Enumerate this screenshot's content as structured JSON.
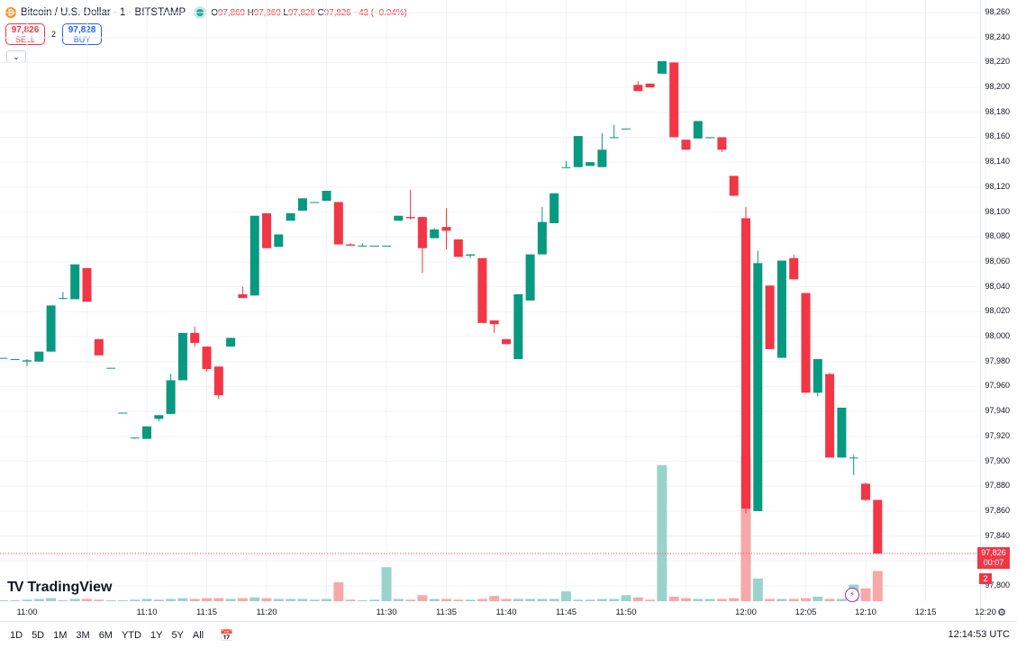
{
  "header": {
    "symbol": "Bitcoin / U.S. Dollar · 1 · BITSTAMP",
    "btc_icon": "₿",
    "open_key": "O",
    "open": "97,869",
    "high_key": "H",
    "high": "97,869",
    "low_key": "L",
    "low": "97,826",
    "close_key": "C",
    "close": "97,826",
    "change": "−43 (−0.04%)"
  },
  "trade": {
    "sell_price": "97,826",
    "sell_label": "SELL",
    "spread": "2",
    "buy_price": "97,828",
    "buy_label": "BUY",
    "collapse_icon": "⌄"
  },
  "branding": {
    "logo_mark": "TV",
    "logo_text": "TradingView"
  },
  "price_axis": {
    "current_price": "97,826",
    "countdown": "00:07",
    "volume_badge": "2"
  },
  "bottom_bar": {
    "ranges": [
      "1D",
      "5D",
      "1M",
      "3M",
      "6M",
      "YTD",
      "1Y",
      "5Y",
      "All"
    ],
    "calendar_icon": "📅",
    "time": "12:14:53 UTC",
    "settings_icon": "⚙"
  },
  "colors": {
    "up": "#089981",
    "down": "#f23645",
    "vol_up": "#9ad3cb",
    "vol_down": "#f7a9a8"
  },
  "chart_data": {
    "type": "candlestick",
    "title": "Bitcoin / U.S. Dollar · 1 · BITSTAMP",
    "interval": "1 minute",
    "y_ticks": [
      97800,
      97820,
      97840,
      97860,
      97880,
      97900,
      97920,
      97940,
      97960,
      97980,
      98000,
      98020,
      98040,
      98060,
      98080,
      98100,
      98120,
      98140,
      98160,
      98180,
      98200,
      98220,
      98240,
      98260
    ],
    "y_tick_labels": [
      "97,800",
      "97,820",
      "97,840",
      "97,860",
      "97,880",
      "97,900",
      "97,920",
      "97,940",
      "97,960",
      "97,980",
      "98,000",
      "98,020",
      "98,040",
      "98,060",
      "98,080",
      "98,100",
      "98,120",
      "98,140",
      "98,160",
      "98,180",
      "98,200",
      "98,220",
      "98,240",
      "98,260"
    ],
    "ylim": [
      97791,
      98262
    ],
    "x_ticks": [
      "11:00",
      "11:05",
      "11:10",
      "11:15",
      "11:20",
      "11:25",
      "11:30",
      "11:35",
      "11:40",
      "11:45",
      "11:50",
      "11:55",
      "12:00",
      "12:05",
      "12:10",
      "12:15",
      "12:20"
    ],
    "x_tick_labels": [
      "11:00",
      "",
      "11:10",
      "11:15",
      "11:20",
      "",
      "11:30",
      "11:35",
      "11:40",
      "11:45",
      "11:50",
      "",
      "12:00",
      "12:05",
      "12:10",
      "12:15",
      "12:20"
    ],
    "xlim": [
      "10:58",
      "12:22"
    ],
    "grid": true,
    "current_price": 97826,
    "candles": [
      {
        "t": "10:58",
        "o": 97983,
        "h": 97983,
        "l": 97983,
        "c": 97983,
        "v": 0.1
      },
      {
        "t": "10:59",
        "o": 97982,
        "h": 97982,
        "l": 97982,
        "c": 97982,
        "v": 0.1
      },
      {
        "t": "11:00",
        "o": 97980,
        "h": 97982,
        "l": 97976,
        "c": 97981,
        "v": 0.2
      },
      {
        "t": "11:01",
        "o": 97980,
        "h": 97988,
        "l": 97980,
        "c": 97988,
        "v": 0.3
      },
      {
        "t": "11:02",
        "o": 97988,
        "h": 98025,
        "l": 97988,
        "c": 98025,
        "v": 0.4
      },
      {
        "t": "11:03",
        "o": 98031,
        "h": 98036,
        "l": 98030,
        "c": 98031,
        "v": 0.1
      },
      {
        "t": "11:04",
        "o": 98030,
        "h": 98058,
        "l": 98030,
        "c": 98058,
        "v": 0.3
      },
      {
        "t": "11:05",
        "o": 98055,
        "h": 98055,
        "l": 98028,
        "c": 98028,
        "v": 0.3
      },
      {
        "t": "11:06",
        "o": 97998,
        "h": 97998,
        "l": 97985,
        "c": 97985,
        "v": 0.2
      },
      {
        "t": "11:07",
        "o": 97975,
        "h": 97975,
        "l": 97975,
        "c": 97975,
        "v": 0.1
      },
      {
        "t": "11:08",
        "o": 97939,
        "h": 97939,
        "l": 97939,
        "c": 97939,
        "v": 0.1
      },
      {
        "t": "11:09",
        "o": 97919,
        "h": 97919,
        "l": 97918,
        "c": 97919,
        "v": 0.2
      },
      {
        "t": "11:10",
        "o": 97918,
        "h": 97928,
        "l": 97918,
        "c": 97928,
        "v": 0.3
      },
      {
        "t": "11:11",
        "o": 97934,
        "h": 97937,
        "l": 97932,
        "c": 97937,
        "v": 0.2
      },
      {
        "t": "11:12",
        "o": 97938,
        "h": 97970,
        "l": 97938,
        "c": 97965,
        "v": 0.3
      },
      {
        "t": "11:13",
        "o": 97965,
        "h": 98003,
        "l": 97965,
        "c": 98003,
        "v": 0.4
      },
      {
        "t": "11:14",
        "o": 98003,
        "h": 98008,
        "l": 97992,
        "c": 97995,
        "v": 0.3
      },
      {
        "t": "11:15",
        "o": 97992,
        "h": 97992,
        "l": 97972,
        "c": 97974,
        "v": 0.4
      },
      {
        "t": "11:16",
        "o": 97976,
        "h": 97976,
        "l": 97950,
        "c": 97953,
        "v": 0.4
      },
      {
        "t": "11:17",
        "o": 97992,
        "h": 97999,
        "l": 97992,
        "c": 97999,
        "v": 0.3
      },
      {
        "t": "11:18",
        "o": 98034,
        "h": 98040,
        "l": 98031,
        "c": 98031,
        "v": 0.4
      },
      {
        "t": "11:19",
        "o": 98033,
        "h": 98097,
        "l": 98033,
        "c": 98097,
        "v": 0.5
      },
      {
        "t": "11:20",
        "o": 98099,
        "h": 98099,
        "l": 98071,
        "c": 98071,
        "v": 0.4
      },
      {
        "t": "11:21",
        "o": 98072,
        "h": 98082,
        "l": 98072,
        "c": 98082,
        "v": 0.3
      },
      {
        "t": "11:22",
        "o": 98093,
        "h": 98099,
        "l": 98093,
        "c": 98099,
        "v": 0.3
      },
      {
        "t": "11:23",
        "o": 98101,
        "h": 98111,
        "l": 98101,
        "c": 98111,
        "v": 0.3
      },
      {
        "t": "11:24",
        "o": 98108,
        "h": 98108,
        "l": 98108,
        "c": 98108,
        "v": 0.2
      },
      {
        "t": "11:25",
        "o": 98109,
        "h": 98117,
        "l": 98109,
        "c": 98117,
        "v": 0.3
      },
      {
        "t": "11:26",
        "o": 98108,
        "h": 98108,
        "l": 98074,
        "c": 98074,
        "v": 2.5
      },
      {
        "t": "11:27",
        "o": 98074,
        "h": 98075,
        "l": 98073,
        "c": 98073,
        "v": 0.2
      },
      {
        "t": "11:28",
        "o": 98073,
        "h": 98075,
        "l": 98073,
        "c": 98073,
        "v": 0.1
      },
      {
        "t": "11:29",
        "o": 98073,
        "h": 98073,
        "l": 98073,
        "c": 98073,
        "v": 0.2
      },
      {
        "t": "11:30",
        "o": 98073,
        "h": 98073,
        "l": 98073,
        "c": 98073,
        "v": 4.5
      },
      {
        "t": "11:31",
        "o": 98093,
        "h": 98097,
        "l": 98093,
        "c": 98097,
        "v": 0.3
      },
      {
        "t": "11:32",
        "o": 98096,
        "h": 98118,
        "l": 98094,
        "c": 98095,
        "v": 0.2
      },
      {
        "t": "11:33",
        "o": 98096,
        "h": 98096,
        "l": 98051,
        "c": 98071,
        "v": 0.8
      },
      {
        "t": "11:34",
        "o": 98079,
        "h": 98087,
        "l": 98079,
        "c": 98086,
        "v": 0.3
      },
      {
        "t": "11:35",
        "o": 98088,
        "h": 98103,
        "l": 98070,
        "c": 98085,
        "v": 0.3
      },
      {
        "t": "11:36",
        "o": 98078,
        "h": 98078,
        "l": 98064,
        "c": 98064,
        "v": 0.2
      },
      {
        "t": "11:37",
        "o": 98065,
        "h": 98066,
        "l": 98063,
        "c": 98066,
        "v": 0.2
      },
      {
        "t": "11:38",
        "o": 98063,
        "h": 98063,
        "l": 98011,
        "c": 98011,
        "v": 0.3
      },
      {
        "t": "11:39",
        "o": 98013,
        "h": 98013,
        "l": 98003,
        "c": 98010,
        "v": 0.7
      },
      {
        "t": "11:40",
        "o": 97998,
        "h": 97998,
        "l": 97994,
        "c": 97994,
        "v": 0.3
      },
      {
        "t": "11:41",
        "o": 97982,
        "h": 98034,
        "l": 97982,
        "c": 98034,
        "v": 0.3
      },
      {
        "t": "11:42",
        "o": 98029,
        "h": 98066,
        "l": 98029,
        "c": 98066,
        "v": 0.3
      },
      {
        "t": "11:43",
        "o": 98066,
        "h": 98104,
        "l": 98066,
        "c": 98092,
        "v": 0.3
      },
      {
        "t": "11:44",
        "o": 98091,
        "h": 98115,
        "l": 98091,
        "c": 98115,
        "v": 0.3
      },
      {
        "t": "11:45",
        "o": 98136,
        "h": 98141,
        "l": 98136,
        "c": 98136,
        "v": 1.3
      },
      {
        "t": "11:46",
        "o": 98136,
        "h": 98161,
        "l": 98136,
        "c": 98161,
        "v": 0.2
      },
      {
        "t": "11:47",
        "o": 98137,
        "h": 98140,
        "l": 98137,
        "c": 98140,
        "v": 0.2
      },
      {
        "t": "11:48",
        "o": 98136,
        "h": 98163,
        "l": 98136,
        "c": 98150,
        "v": 0.3
      },
      {
        "t": "11:49",
        "o": 98160,
        "h": 98170,
        "l": 98160,
        "c": 98160,
        "v": 0.3
      },
      {
        "t": "11:50",
        "o": 98167,
        "h": 98167,
        "l": 98167,
        "c": 98167,
        "v": 0.8
      },
      {
        "t": "11:51",
        "o": 98202,
        "h": 98205,
        "l": 98197,
        "c": 98197,
        "v": 0.5
      },
      {
        "t": "11:52",
        "o": 98203,
        "h": 98203,
        "l": 98200,
        "c": 98200,
        "v": 0.2
      },
      {
        "t": "11:53",
        "o": 98211,
        "h": 98221,
        "l": 98211,
        "c": 98221,
        "v": 18.0
      },
      {
        "t": "11:54",
        "o": 98220,
        "h": 98220,
        "l": 98160,
        "c": 98160,
        "v": 0.6
      },
      {
        "t": "11:55",
        "o": 98158,
        "h": 98158,
        "l": 98150,
        "c": 98150,
        "v": 0.4
      },
      {
        "t": "11:56",
        "o": 98159,
        "h": 98173,
        "l": 98159,
        "c": 98173,
        "v": 0.3
      },
      {
        "t": "11:57",
        "o": 98160,
        "h": 98160,
        "l": 98159,
        "c": 98160,
        "v": 0.3
      },
      {
        "t": "11:58",
        "o": 98160,
        "h": 98160,
        "l": 98148,
        "c": 98150,
        "v": 0.3
      },
      {
        "t": "11:59",
        "o": 98129,
        "h": 98129,
        "l": 98113,
        "c": 98113,
        "v": 0.4
      },
      {
        "t": "12:00",
        "o": 98095,
        "h": 98104,
        "l": 97858,
        "c": 97862,
        "v": 19.2
      },
      {
        "t": "12:01",
        "o": 97860,
        "h": 98069,
        "l": 97860,
        "c": 98059,
        "v": 3.0
      },
      {
        "t": "12:02",
        "o": 98041,
        "h": 98041,
        "l": 97990,
        "c": 97990,
        "v": 0.3
      },
      {
        "t": "12:03",
        "o": 97983,
        "h": 98061,
        "l": 97983,
        "c": 98061,
        "v": 0.3
      },
      {
        "t": "12:04",
        "o": 98063,
        "h": 98066,
        "l": 98046,
        "c": 98046,
        "v": 0.3
      },
      {
        "t": "12:05",
        "o": 98035,
        "h": 98035,
        "l": 97955,
        "c": 97955,
        "v": 0.4
      },
      {
        "t": "12:06",
        "o": 97955,
        "h": 97982,
        "l": 97952,
        "c": 97982,
        "v": 0.6
      },
      {
        "t": "12:07",
        "o": 97970,
        "h": 97971,
        "l": 97903,
        "c": 97903,
        "v": 0.3
      },
      {
        "t": "12:08",
        "o": 97903,
        "h": 97943,
        "l": 97903,
        "c": 97943,
        "v": 0.3
      },
      {
        "t": "12:09",
        "o": 97903,
        "h": 97905,
        "l": 97889,
        "c": 97903,
        "v": 2.2
      },
      {
        "t": "12:10",
        "o": 97882,
        "h": 97883,
        "l": 97868,
        "c": 97869,
        "v": 1.7
      },
      {
        "t": "12:11",
        "o": 97869,
        "h": 97869,
        "l": 97826,
        "c": 97826,
        "v": 4.0
      }
    ]
  }
}
